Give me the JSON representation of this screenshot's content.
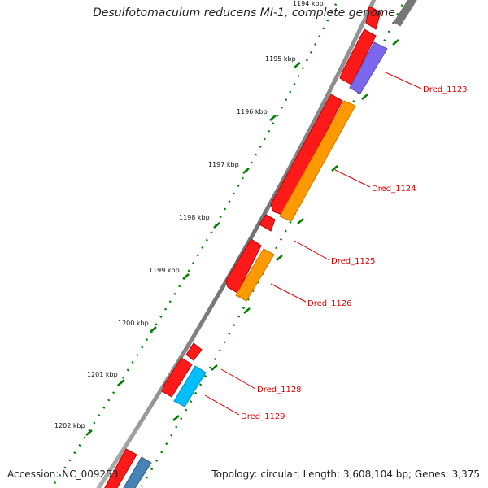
{
  "title": "Desulfotomaculum reducens MI-1, complete genome",
  "footer": {
    "accession": "Accession: NC_009253",
    "summary": "Topology: circular; Length: 3,608,104 bp; Genes: 3,375"
  },
  "ticks": [
    {
      "label": "1194 kbp"
    },
    {
      "label": "1195 kbp"
    },
    {
      "label": "1196 kbp"
    },
    {
      "label": "1197 kbp"
    },
    {
      "label": "1198 kbp"
    },
    {
      "label": "1199 kbp"
    },
    {
      "label": "1200 kbp"
    },
    {
      "label": "1201 kbp"
    },
    {
      "label": "1202 kbp"
    }
  ],
  "gene_labels": [
    "Dred_1123",
    "Dred_1124",
    "Dred_1125",
    "Dred_1126",
    "Dred_1128",
    "Dred_1129"
  ],
  "colors": {
    "forward_gene": "#ff0000",
    "reverse_gene": "#ff0000",
    "cog_purple": "#7b68ee",
    "cog_orange": "#ff9900",
    "cog_cyan": "#00bfff",
    "cog_blue": "#4682b4",
    "backbone": "#888888",
    "tick_green": "#008000",
    "label_red": "#e00000"
  }
}
